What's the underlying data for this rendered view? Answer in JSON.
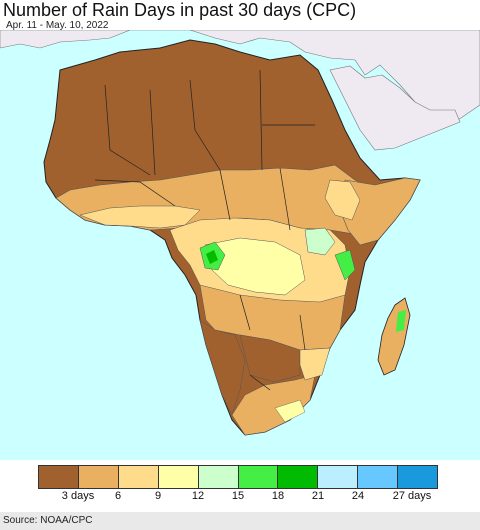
{
  "header": {
    "title": "Number of Rain Days in past 30 days (CPC)",
    "subtitle": "Apr. 11 - May. 10, 2022"
  },
  "map": {
    "region": "Africa",
    "colors": {
      "ocean": "#ccffff",
      "outside_region": "#efe9f1",
      "border": "#222222",
      "subborder": "#777777"
    }
  },
  "legend": {
    "colors": [
      "#a0612f",
      "#e8b060",
      "#fedc8c",
      "#ffffa8",
      "#ccffcc",
      "#44ee44",
      "#00bb00",
      "#bbeeff",
      "#66c8ff",
      "#1a99dd"
    ],
    "labels": [
      "3 days",
      "6",
      "9",
      "12",
      "15",
      "18",
      "21",
      "24",
      "27 days"
    ]
  },
  "footer": {
    "source": "Source: NOAA/CPC"
  }
}
